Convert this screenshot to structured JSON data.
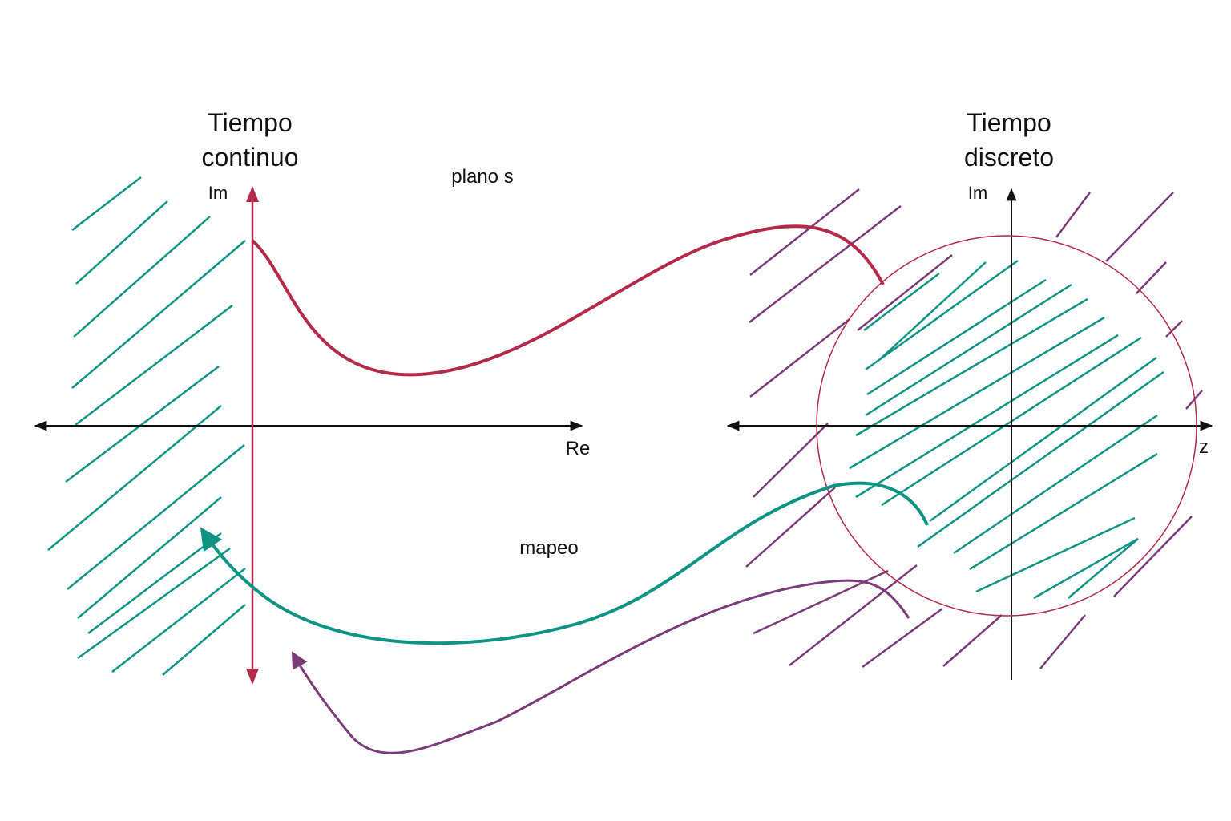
{
  "continuous": {
    "title_line1": "Tiempo",
    "title_line2": "continuo",
    "imag_axis_label": "Im",
    "real_axis_label": "Re"
  },
  "discrete": {
    "title_line1": "Tiempo",
    "title_line2": "discreto",
    "imag_axis_label": "Im",
    "plane_label": "z"
  },
  "labels": {
    "plane_s": "plano s",
    "mapping": "mapeo"
  },
  "colors": {
    "stable_region_teal": "#0f9484",
    "unstable_region_purple": "#7b3a78",
    "imag_axis_red": "#b42a4a",
    "unit_circle_red": "#b42a4a",
    "axis_black": "#111111"
  }
}
